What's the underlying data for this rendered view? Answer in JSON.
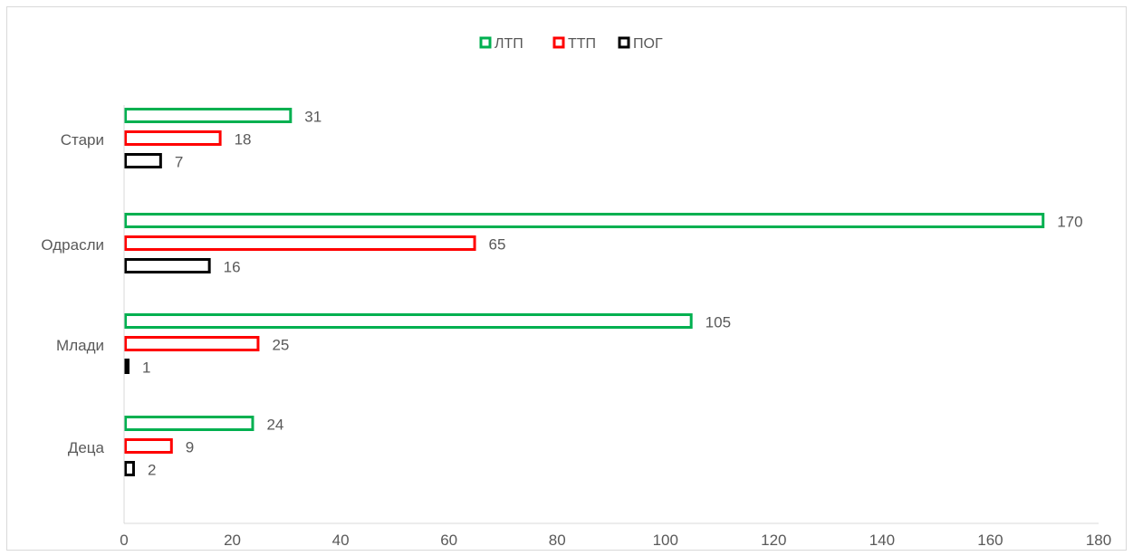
{
  "chart_data": {
    "type": "bar",
    "orientation": "horizontal",
    "title": "",
    "xlabel": "",
    "ylabel": "",
    "categories": [
      "Деца",
      "Млади",
      "Одрасли",
      "Стари"
    ],
    "series": [
      {
        "name": "ЛТП",
        "color": "#00b050",
        "values": [
          24,
          105,
          170,
          31
        ]
      },
      {
        "name": "ТТП",
        "color": "#ff0000",
        "values": [
          9,
          25,
          65,
          18
        ]
      },
      {
        "name": "ПОГ",
        "color": "#000000",
        "values": [
          2,
          1,
          16,
          7
        ]
      }
    ],
    "xlim": [
      0,
      180
    ],
    "x_ticks": [
      "0",
      "20",
      "40",
      "60",
      "80",
      "100",
      "120",
      "140",
      "160",
      "180"
    ],
    "grid": false,
    "legend_position": "top",
    "data_labels": true,
    "bar_style": "outline"
  }
}
